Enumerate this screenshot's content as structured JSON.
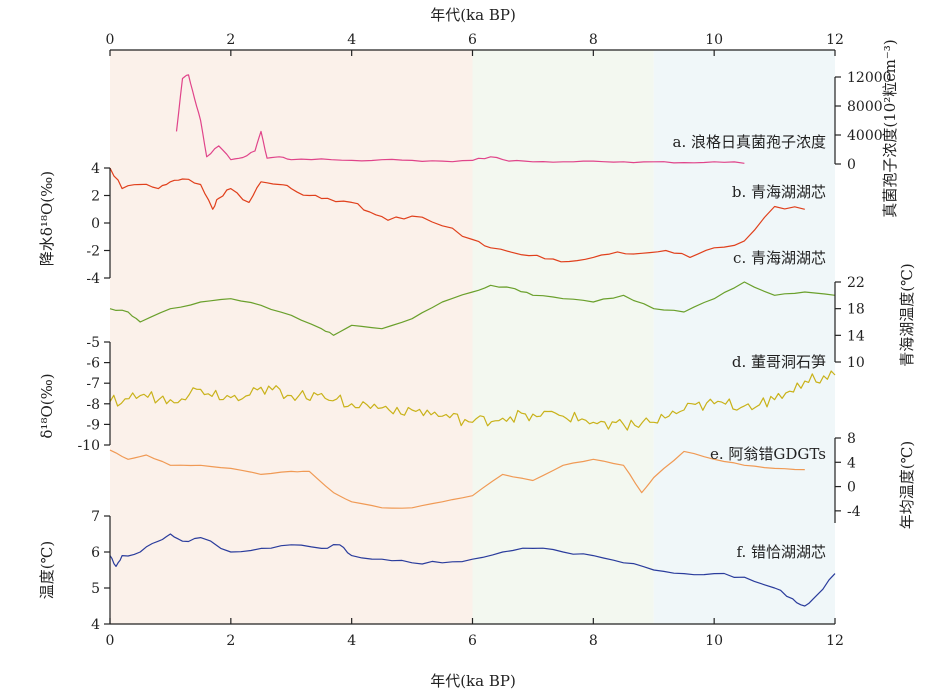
{
  "chart_data": {
    "type": "line",
    "top_xlabel": "年代(ka BP)",
    "bottom_xlabel": "年代(ka BP)",
    "xlim": [
      0,
      12
    ],
    "xticks": [
      "0",
      "2",
      "4",
      "6",
      "8",
      "10",
      "12"
    ],
    "background_bands": [
      {
        "from": 0,
        "to": 6,
        "color": "#fbf1ea"
      },
      {
        "from": 6,
        "to": 9,
        "color": "#f3f8f0"
      },
      {
        "from": 9,
        "to": 12,
        "color": "#f0f7f9"
      }
    ],
    "panels": [
      {
        "id": "a",
        "label": "a. 浪格日真菌孢子浓度",
        "color": "#e0448a",
        "axis_side": "right",
        "axis_label": "真菌孢子浓度(10²粒cm⁻³)",
        "yticks": [
          "0",
          "4000",
          "8000",
          "12000"
        ],
        "ylim": [
          0,
          12000
        ],
        "x": [
          1.1,
          1.2,
          1.3,
          1.4,
          1.5,
          1.6,
          1.8,
          2.0,
          2.2,
          2.4,
          2.5,
          2.6,
          2.8,
          3.0,
          3.5,
          4.0,
          4.5,
          5.0,
          5.5,
          6.0,
          6.3,
          6.6,
          7.0,
          7.5,
          8.0,
          8.5,
          9.0,
          9.5,
          10.0,
          10.5
        ],
        "y": [
          4500,
          11800,
          12300,
          9000,
          6000,
          1000,
          2500,
          600,
          900,
          1800,
          4500,
          800,
          1000,
          600,
          700,
          500,
          600,
          500,
          400,
          500,
          1000,
          400,
          300,
          300,
          400,
          300,
          300,
          200,
          300,
          100
        ]
      },
      {
        "id": "b",
        "label": "b. 青海湖湖芯",
        "color": "#e0401c",
        "axis_side": "left",
        "axis_label": "降水δ¹⁸O(‰)",
        "yticks": [
          "-4",
          "-2",
          "0",
          "2",
          "4"
        ],
        "ylim": [
          -4,
          4
        ],
        "x": [
          0,
          0.2,
          0.5,
          0.8,
          1.0,
          1.2,
          1.5,
          1.7,
          1.8,
          2.0,
          2.3,
          2.5,
          2.8,
          3.0,
          3.3,
          3.6,
          4.0,
          4.3,
          4.6,
          5.0,
          5.5,
          6.0,
          6.3,
          6.8,
          7.2,
          7.6,
          8.0,
          8.4,
          8.8,
          9.2,
          9.6,
          10.0,
          10.5,
          11.0,
          11.5
        ],
        "y": [
          4,
          2.5,
          2.8,
          2.5,
          3,
          3.2,
          2.8,
          1,
          1.8,
          2.5,
          1.5,
          3,
          2.8,
          2.5,
          2,
          1.8,
          1.5,
          0.8,
          0.2,
          0.5,
          -0.2,
          -1.2,
          -1.8,
          -2.3,
          -2.6,
          -2.8,
          -2.5,
          -2.1,
          -2.2,
          -2.0,
          -2.5,
          -1.8,
          -1.3,
          1.2,
          1.0
        ]
      },
      {
        "id": "c",
        "label": "c. 青海湖湖芯",
        "color": "#6aa02c",
        "axis_side": "right",
        "axis_label": "青海湖温度(℃)",
        "yticks": [
          "10",
          "14",
          "18",
          "22"
        ],
        "ylim": [
          10,
          22
        ],
        "x": [
          0,
          0.3,
          0.5,
          1.0,
          1.5,
          2.0,
          2.5,
          3.0,
          3.5,
          3.7,
          4.0,
          4.5,
          5.0,
          5.5,
          6.0,
          6.3,
          6.7,
          7.0,
          7.5,
          8.0,
          8.5,
          9.0,
          9.5,
          10.0,
          10.5,
          11.0,
          11.5,
          12.0
        ],
        "y": [
          18,
          17.5,
          16,
          18,
          19,
          19.5,
          18.5,
          17,
          15,
          14,
          15.5,
          15,
          16.5,
          19,
          20.5,
          21.5,
          21,
          20,
          19.5,
          19,
          20,
          18,
          17.5,
          19.5,
          22,
          20,
          20.5,
          20
        ]
      },
      {
        "id": "d",
        "label": "d. 董哥洞石笋",
        "color": "#c9b21a",
        "axis_side": "left",
        "axis_label": "δ¹⁸O(‰)",
        "yticks": [
          "-10",
          "-9",
          "-8",
          "-7",
          "-6",
          "-5"
        ],
        "ylim": [
          -10,
          -5
        ],
        "x": [
          0,
          0.5,
          1.0,
          1.5,
          2.0,
          2.5,
          3.0,
          3.5,
          4.0,
          4.5,
          5.0,
          5.5,
          6.0,
          6.5,
          7.0,
          7.5,
          8.0,
          8.5,
          9.0,
          9.5,
          10.0,
          10.5,
          11.0,
          11.5,
          12.0
        ],
        "y": [
          -7.9,
          -7.6,
          -7.8,
          -7.3,
          -7.7,
          -7.2,
          -7.6,
          -7.5,
          -8.0,
          -8.2,
          -8.3,
          -8.6,
          -8.9,
          -8.7,
          -8.5,
          -8.6,
          -8.9,
          -9.0,
          -8.9,
          -8.3,
          -8.0,
          -8.1,
          -7.8,
          -6.9,
          -6.6
        ]
      },
      {
        "id": "e",
        "label": "e. 阿翁错GDGTs",
        "color": "#f09a55",
        "axis_side": "right",
        "axis_label": "年均温度(℃)",
        "yticks": [
          "-4",
          "0",
          "4",
          "8"
        ],
        "ylim": [
          -6,
          8
        ],
        "x": [
          0,
          0.3,
          0.6,
          1.0,
          1.5,
          2.0,
          2.5,
          3.0,
          3.3,
          3.7,
          4.0,
          4.5,
          5.0,
          5.5,
          6.0,
          6.5,
          7.0,
          7.5,
          8.0,
          8.5,
          8.8,
          9.0,
          9.5,
          10.0,
          10.5,
          11.0,
          11.5
        ],
        "y": [
          6,
          4.5,
          5.2,
          3.5,
          3.5,
          3,
          2,
          2.5,
          2.5,
          -1,
          -2.5,
          -3.5,
          -3.5,
          -2.5,
          -1.5,
          2,
          1,
          3.5,
          4.5,
          3.5,
          -1,
          1.5,
          5.8,
          4.5,
          3.5,
          3,
          2.8
        ]
      },
      {
        "id": "f",
        "label": "f. 错恰湖湖芯",
        "color": "#2a3c9c",
        "axis_side": "left",
        "axis_label": "温度(℃)",
        "yticks": [
          "4",
          "5",
          "6",
          "7"
        ],
        "ylim": [
          4,
          7
        ],
        "x": [
          0,
          0.1,
          0.2,
          0.5,
          0.8,
          1.0,
          1.2,
          1.5,
          2.0,
          2.5,
          3.0,
          3.5,
          3.8,
          4.0,
          4.5,
          5.0,
          5.5,
          6.0,
          6.5,
          7.0,
          7.5,
          8.0,
          8.5,
          9.0,
          9.5,
          10.0,
          10.5,
          11.0,
          11.3,
          11.5,
          11.7,
          12.0
        ],
        "y": [
          5.9,
          5.6,
          5.9,
          6.0,
          6.3,
          6.5,
          6.3,
          6.4,
          6.0,
          6.1,
          6.2,
          6.1,
          6.2,
          5.9,
          5.8,
          5.7,
          5.7,
          5.8,
          6.0,
          6.1,
          6.0,
          5.9,
          5.7,
          5.5,
          5.4,
          5.4,
          5.3,
          5.0,
          4.7,
          4.5,
          4.8,
          5.4
        ]
      }
    ]
  }
}
